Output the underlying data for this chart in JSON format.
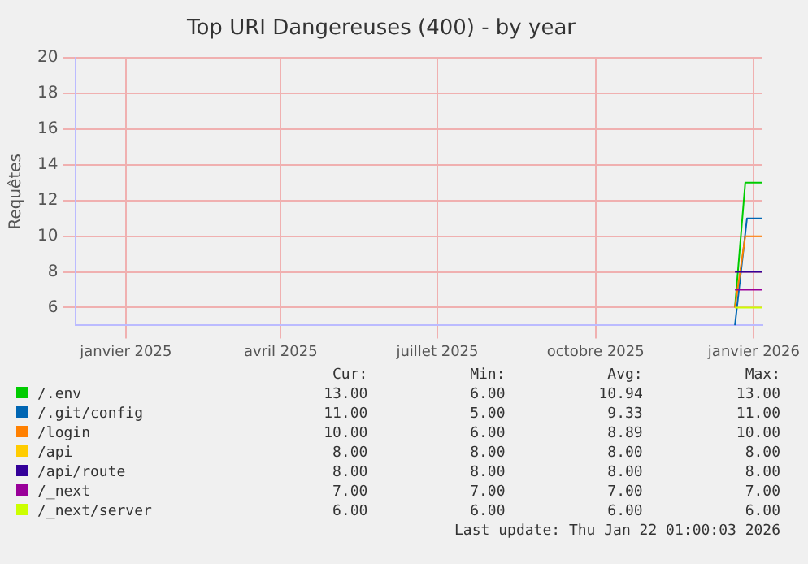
{
  "chart_data": {
    "type": "line",
    "title": "Top URI Dangereuses (400) - by year",
    "ylabel": "Requêtes",
    "xlim": [
      "2024-12-03",
      "2026-01-06"
    ],
    "xticks": [
      {
        "value": "2025-01-01",
        "label": "janvier 2025"
      },
      {
        "value": "2025-04-01",
        "label": "avril 2025"
      },
      {
        "value": "2025-07-01",
        "label": "juillet 2025"
      },
      {
        "value": "2025-10-01",
        "label": "octobre 2025"
      },
      {
        "value": "2026-01-01",
        "label": "janvier 2026"
      }
    ],
    "ylim": [
      5,
      20
    ],
    "yticks": [
      6,
      8,
      10,
      12,
      14,
      16,
      18,
      20
    ],
    "grid": true,
    "legend": "bottom",
    "series": [
      {
        "name": "/.env",
        "color": "#00cc00",
        "x": [
          "2025-12-21",
          "2025-12-27",
          "2026-01-06"
        ],
        "values": [
          6,
          13,
          13
        ]
      },
      {
        "name": "/.git/config",
        "color": "#0066b3",
        "x": [
          "2025-12-21",
          "2025-12-28",
          "2026-01-06"
        ],
        "values": [
          5,
          11,
          11
        ]
      },
      {
        "name": "/login",
        "color": "#ff8000",
        "x": [
          "2025-12-21",
          "2025-12-27",
          "2026-01-06"
        ],
        "values": [
          6,
          10,
          10
        ]
      },
      {
        "name": "/api",
        "color": "#ffcc00"
      },
      {
        "name": "/api/route",
        "color": "#330099",
        "x": [
          "2025-12-21",
          "2026-01-06"
        ],
        "values": [
          8,
          8
        ]
      },
      {
        "name": "/_next",
        "color": "#990099",
        "x": [
          "2025-12-21",
          "2026-01-06"
        ],
        "values": [
          7,
          7
        ]
      },
      {
        "name": "/_next/server",
        "color": "#ccff00",
        "x": [
          "2025-12-21",
          "2026-01-06"
        ],
        "values": [
          6,
          6
        ]
      }
    ],
    "annotations": [
      "Cur:",
      "Min:",
      "Avg:",
      "Max:",
      "13.00",
      "6.00",
      "10.94",
      "13.00",
      "11.00",
      "5.00",
      "9.33",
      "11.00",
      "10.00",
      "6.00",
      "8.89",
      "10.00",
      "8.00",
      "8.00",
      "8.00",
      "8.00",
      "8.00",
      "8.00",
      "8.00",
      "8.00",
      "7.00",
      "7.00",
      "7.00",
      "7.00",
      "6.00",
      "6.00",
      "6.00",
      "6.00",
      "Last update: Thu Jan 22 01:00:03 2026"
    ]
  }
}
